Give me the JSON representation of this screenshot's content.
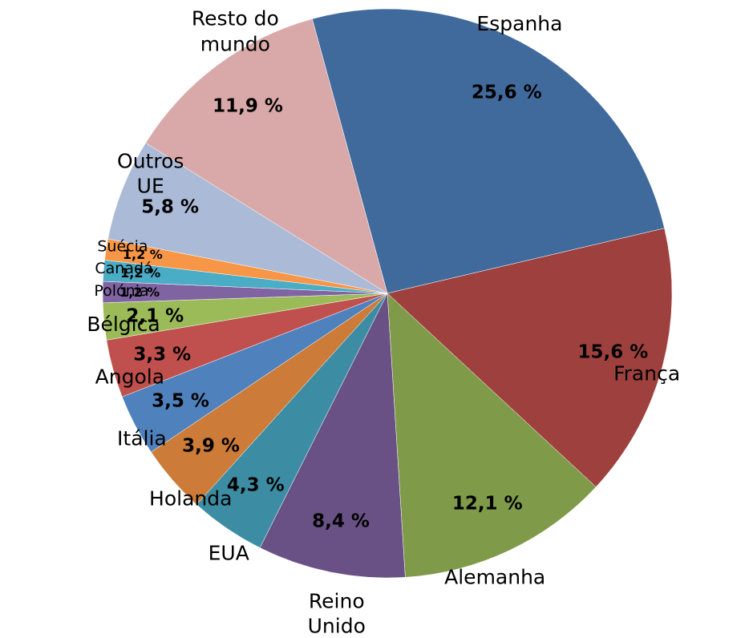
{
  "chart_data": {
    "type": "pie",
    "categories": [
      "Espanha",
      "França",
      "Alemanha",
      "Reino Unido",
      "EUA",
      "Holanda",
      "Itália",
      "Angola",
      "Bélgica",
      "Polónia",
      "Canadá",
      "Suécia",
      "Outros UE",
      "Resto do mundo"
    ],
    "values": [
      25.6,
      15.6,
      12.1,
      8.4,
      4.3,
      3.9,
      3.5,
      3.3,
      2.1,
      1.2,
      1.2,
      1.2,
      5.8,
      11.9
    ],
    "value_labels": [
      "25,6 %",
      "15,6 %",
      "12,1 %",
      "8,4 %",
      "4,3 %",
      "3,9 %",
      "3,5 %",
      "3,3 %",
      "2,1 %",
      "1,2 %",
      "1,2 %",
      "1,2 %",
      "5,8 %",
      "11,9 %"
    ],
    "colors": [
      "#416a9c",
      "#9e413e",
      "#7f9a48",
      "#695185",
      "#3c8da3",
      "#cc7b38",
      "#4f81bd",
      "#c0504d",
      "#9bbb59",
      "#8064a2",
      "#4bacc6",
      "#f79646",
      "#aabad7",
      "#d9a9a9"
    ]
  }
}
